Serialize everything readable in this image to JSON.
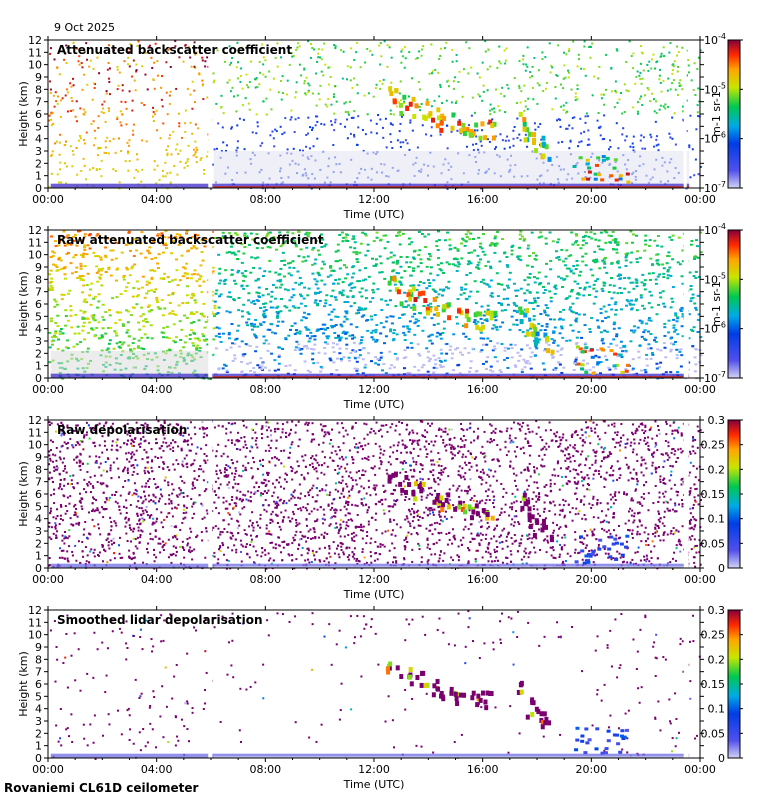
{
  "header": {
    "date": "9 Oct 2025"
  },
  "footer": {
    "site": "Rovaniemi CL61D ceilometer"
  },
  "chart_data": [
    {
      "type": "heatmap",
      "title": "Attenuated backscatter coefficient",
      "xlabel": "Time (UTC)",
      "ylabel": "Height (km)",
      "xticks": [
        "00:00",
        "04:00",
        "08:00",
        "12:00",
        "16:00",
        "20:00",
        "00:00"
      ],
      "xlim_hours": [
        0,
        24
      ],
      "ylim": [
        0,
        12
      ],
      "yticks": [
        0,
        1,
        2,
        3,
        4,
        5,
        6,
        7,
        8,
        9,
        10,
        11,
        12
      ],
      "colorbar": {
        "scale": "log",
        "range": [
          1e-07,
          0.0001
        ],
        "ticks": [
          "10-7",
          "10-6",
          "10-5",
          "10-4"
        ],
        "label": "m-1 sr-1"
      }
    },
    {
      "type": "heatmap",
      "title": "Raw attenuated backscatter coefficient",
      "xlabel": "Time (UTC)",
      "ylabel": "Height (km)",
      "xticks": [
        "00:00",
        "04:00",
        "08:00",
        "12:00",
        "16:00",
        "20:00",
        "00:00"
      ],
      "xlim_hours": [
        0,
        24
      ],
      "ylim": [
        0,
        12
      ],
      "yticks": [
        0,
        1,
        2,
        3,
        4,
        5,
        6,
        7,
        8,
        9,
        10,
        11,
        12
      ],
      "colorbar": {
        "scale": "log",
        "range": [
          1e-07,
          0.0001
        ],
        "ticks": [
          "10-7",
          "10-6",
          "10-5",
          "10-4"
        ],
        "label": "m-1 sr-1"
      }
    },
    {
      "type": "heatmap",
      "title": "Raw depolarisation",
      "xlabel": "Time (UTC)",
      "ylabel": "Height (km)",
      "xticks": [
        "00:00",
        "04:00",
        "08:00",
        "12:00",
        "16:00",
        "20:00",
        "00:00"
      ],
      "xlim_hours": [
        0,
        24
      ],
      "ylim": [
        0,
        12
      ],
      "yticks": [
        0,
        1,
        2,
        3,
        4,
        5,
        6,
        7,
        8,
        9,
        10,
        11,
        12
      ],
      "colorbar": {
        "scale": "linear",
        "range": [
          0,
          0.3
        ],
        "ticks": [
          "0",
          "0.05",
          "0.1",
          "0.15",
          "0.2",
          "0.25",
          "0.3"
        ],
        "label": ""
      }
    },
    {
      "type": "heatmap",
      "title": "Smoothed lidar depolarisation",
      "xlabel": "Time (UTC)",
      "ylabel": "Height (km)",
      "xticks": [
        "00:00",
        "04:00",
        "08:00",
        "12:00",
        "16:00",
        "20:00",
        "00:00"
      ],
      "xlim_hours": [
        0,
        24
      ],
      "ylim": [
        0,
        12
      ],
      "yticks": [
        0,
        1,
        2,
        3,
        4,
        5,
        6,
        7,
        8,
        9,
        10,
        11,
        12
      ],
      "colorbar": {
        "scale": "linear",
        "range": [
          0,
          0.3
        ],
        "ticks": [
          "0",
          "0.05",
          "0.1",
          "0.15",
          "0.2",
          "0.25",
          "0.3"
        ],
        "label": ""
      }
    }
  ]
}
